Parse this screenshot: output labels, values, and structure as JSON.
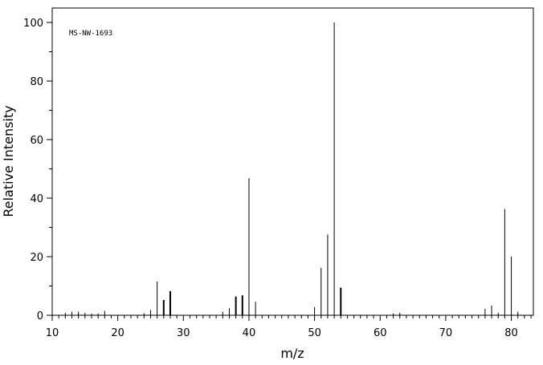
{
  "chart_data": {
    "type": "bar",
    "annotation": "MS-NW-1693",
    "xlabel": "m/z",
    "ylabel": "Relative Intensity",
    "xlim": [
      10,
      84
    ],
    "ylim": [
      0,
      105
    ],
    "x_ticks": [
      10,
      20,
      30,
      40,
      50,
      60,
      70,
      80
    ],
    "y_ticks": [
      0,
      20,
      40,
      60,
      80,
      100
    ],
    "grid": false,
    "series": [
      {
        "x": [
          12,
          13,
          14,
          15,
          16,
          17,
          18,
          24,
          25,
          26,
          27,
          28,
          36,
          37,
          38,
          39,
          40,
          41,
          50,
          51,
          52,
          53,
          54,
          62,
          63,
          76,
          77,
          78,
          79,
          80,
          81
        ],
        "values": [
          0.8,
          1.2,
          1.2,
          0.8,
          0.5,
          0.6,
          1.5,
          0.7,
          1.8,
          11.5,
          5.2,
          8.2,
          1.2,
          2.4,
          6.4,
          6.8,
          46.8,
          4.6,
          2.8,
          16.2,
          27.6,
          100,
          9.4,
          0.6,
          0.8,
          2.2,
          3.3,
          0.9,
          36.3,
          20.1,
          1.2
        ]
      }
    ]
  }
}
